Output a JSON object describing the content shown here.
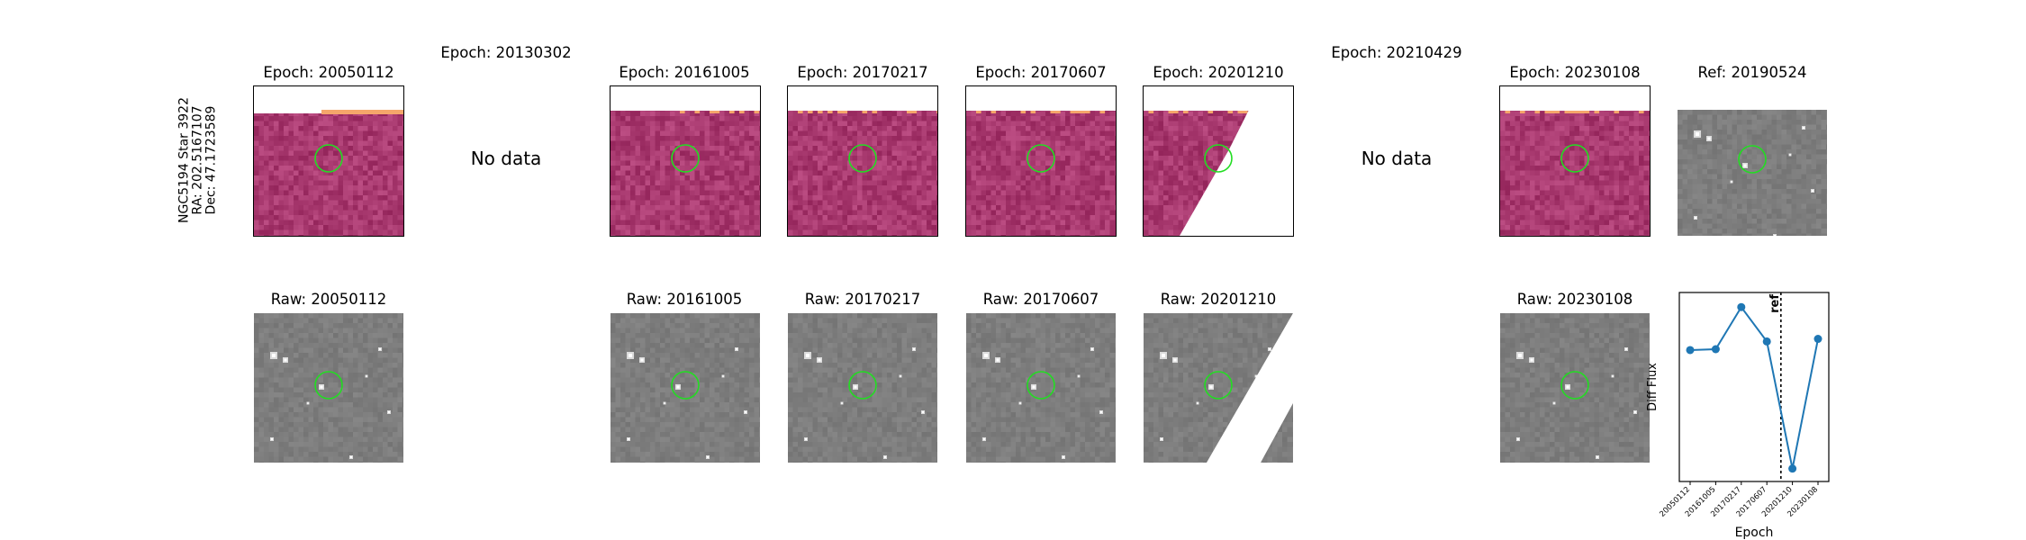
{
  "row_label": {
    "star": "NGC5194 Star 3922",
    "ra": "RA: 202.5167107",
    "dec": "Dec: 47.1723589"
  },
  "epoch_titles": [
    "Epoch: 20050112",
    "Epoch: 20130302",
    "Epoch: 20161005",
    "Epoch: 20170217",
    "Epoch: 20170607",
    "Epoch: 20201210",
    "Epoch: 20210429",
    "Epoch: 20230108"
  ],
  "ref_title": "Ref: 20190524",
  "raw_titles": [
    "Raw: 20050112",
    "Raw: 20161005",
    "Raw: 20170217",
    "Raw: 20170607",
    "Raw: 20201210",
    "Raw: 20230108"
  ],
  "no_data_text": "No data",
  "colors": {
    "diff_base": "#a8396f",
    "raw_base": "#7d7d7d",
    "circle": "#22dd22",
    "line": "#1f77b4",
    "saturated": "#f5a66b"
  },
  "chart_data": {
    "type": "line",
    "x": [
      "20050112",
      "20161005",
      "20170217",
      "20170607",
      "20201210",
      "20230108"
    ],
    "values": [
      0.38,
      0.39,
      0.88,
      0.48,
      -1.0,
      0.51
    ],
    "xlabel": "Epoch",
    "ylabel": "Diff Flux",
    "ylim": [
      -1.15,
      1.05
    ],
    "ref_line": {
      "label": "ref",
      "date": "20190524"
    },
    "grid": false
  }
}
